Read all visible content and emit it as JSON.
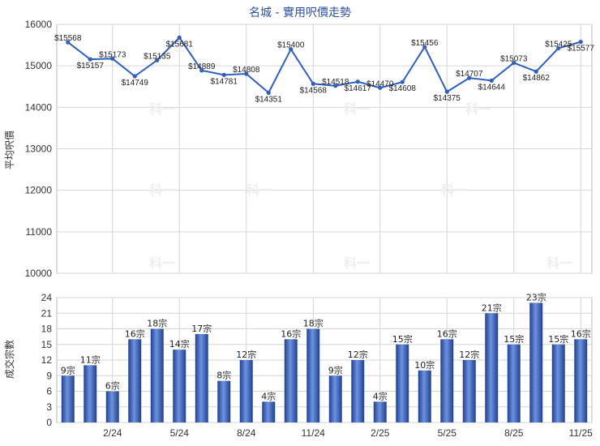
{
  "chart_data": [
    {
      "type": "line",
      "title": "名城 - 實用呎價走勢",
      "ylabel": "平均呎價",
      "ylim": [
        10000,
        16000
      ],
      "yticks": [
        10000,
        11000,
        12000,
        13000,
        14000,
        15000,
        16000
      ],
      "grid": true,
      "color": "#2f5fbf",
      "values": [
        15568,
        15157,
        15173,
        14749,
        15135,
        15681,
        14889,
        14781,
        14808,
        14351,
        15400,
        14568,
        14518,
        14617,
        14470,
        14608,
        15456,
        14375,
        14707,
        14644,
        15073,
        14862,
        15425,
        15577
      ],
      "labels": [
        "$15568",
        "$15157",
        "$15173",
        "$14749",
        "$15135",
        "$15681",
        "$14889",
        "$14781",
        "$14808",
        "$14351",
        "$15400",
        "$14568",
        "$14518",
        "$14617",
        "$14470",
        "$14608",
        "$15456",
        "$14375",
        "$14707",
        "$14644",
        "$15073",
        "$14862",
        "$15425",
        "$15577"
      ]
    },
    {
      "type": "bar",
      "ylabel": "成交宗數",
      "ylim": [
        0,
        24
      ],
      "yticks": [
        0,
        3,
        6,
        9,
        12,
        15,
        18,
        21,
        24
      ],
      "grid": true,
      "color": "#3a66c4",
      "values": [
        9,
        11,
        6,
        16,
        18,
        14,
        17,
        8,
        12,
        4,
        16,
        18,
        9,
        12,
        4,
        15,
        10,
        16,
        12,
        21,
        15,
        23,
        15,
        16
      ],
      "labels": [
        "9宗",
        "11宗",
        "6宗",
        "16宗",
        "18宗",
        "14宗",
        "17宗",
        "8宗",
        "12宗",
        "4宗",
        "16宗",
        "18宗",
        "9宗",
        "12宗",
        "4宗",
        "15宗",
        "10宗",
        "16宗",
        "12宗",
        "21宗",
        "15宗",
        "23宗",
        "15宗",
        "16宗"
      ]
    }
  ],
  "x_tick_labels": [
    {
      "index": 2,
      "label": "2/24"
    },
    {
      "index": 5,
      "label": "5/24"
    },
    {
      "index": 8,
      "label": "8/24"
    },
    {
      "index": 11,
      "label": "11/24"
    },
    {
      "index": 14,
      "label": "2/25"
    },
    {
      "index": 17,
      "label": "5/25"
    },
    {
      "index": 20,
      "label": "8/25"
    },
    {
      "index": 23,
      "label": "11/25"
    }
  ],
  "watermark": "科一"
}
